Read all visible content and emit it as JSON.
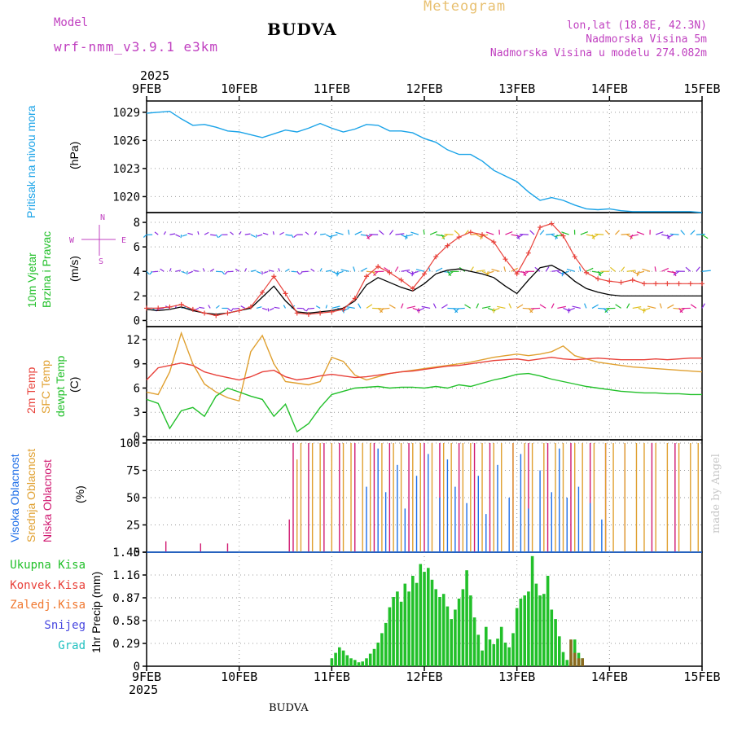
{
  "header": {
    "model_label": "Model",
    "model_name": "wrf-nmm_v3.9.1 e3km",
    "location": "BUDVA",
    "chart_kind": "Meteogram",
    "coords": "lon,lat (18.8E, 42.3N)",
    "elevation": "Nadmorska Visina 5m",
    "model_elevation": "Nadmorska Visina u modelu 274.082m",
    "footer_location": "BUDVA",
    "credit": "made by Angel",
    "year": "2025"
  },
  "colors": {
    "pressure": "#1aa3e8",
    "temp2m": "#e8413a",
    "sfc": "#e0a030",
    "dew": "#22c02a",
    "gust": "#e8413a",
    "wind": "#000000",
    "high": "#1e6ee8",
    "mid": "#e0a030",
    "low": "#d01870",
    "precip": "#22c02a",
    "conv": "#e8413a",
    "snow": "#4848e0",
    "grad": "#20c0c0",
    "title": "#c040c0",
    "meteo": "#e8c070"
  },
  "chart_data": [
    {
      "type": "line",
      "title": "Pritisak na nivou mora",
      "ylabel": "(hPa)",
      "yticks": [
        "1029",
        "1026",
        "1023",
        "1020"
      ],
      "ylim": [
        1018.3,
        1030.2
      ],
      "x_range_hours": [
        0,
        144
      ],
      "series": [
        {
          "name": "Pritisak",
          "x": [
            0,
            3,
            6,
            9,
            12,
            15,
            18,
            21,
            24,
            27,
            30,
            33,
            36,
            39,
            42,
            45,
            48,
            51,
            54,
            57,
            60,
            63,
            66,
            69,
            72,
            75,
            78,
            81,
            84,
            87,
            90,
            93,
            96,
            99,
            102,
            105,
            108,
            111,
            114,
            117,
            120,
            123,
            126,
            129,
            132,
            135,
            138,
            141,
            144
          ],
          "values": [
            1028.9,
            1029.0,
            1029.1,
            1028.3,
            1027.6,
            1027.7,
            1027.4,
            1027.0,
            1026.9,
            1026.6,
            1026.3,
            1026.7,
            1027.1,
            1026.9,
            1027.3,
            1027.8,
            1027.3,
            1026.9,
            1027.2,
            1027.7,
            1027.6,
            1027.0,
            1027.0,
            1026.8,
            1026.2,
            1025.8,
            1025.0,
            1024.5,
            1024.5,
            1023.8,
            1022.8,
            1022.2,
            1021.6,
            1020.5,
            1019.6,
            1019.9,
            1019.6,
            1019.1,
            1018.7,
            1018.6,
            1018.7,
            1018.5,
            1018.4,
            1018.4,
            1018.4,
            1018.4,
            1018.4,
            1018.4,
            1018.3
          ]
        }
      ]
    },
    {
      "type": "line",
      "title": "10m Vjetar Brzina i Pravac",
      "ylabel": "(m/s)",
      "direction_legend": {
        "n": "N",
        "w": "W",
        "e": "E",
        "s": "S"
      },
      "yticks": [
        "8",
        "6",
        "4",
        "2",
        "0"
      ],
      "ylim": [
        -0.5,
        8.8
      ],
      "x_range_hours": [
        0,
        144
      ],
      "series": [
        {
          "name": "Udari vjetra",
          "x": [
            0,
            3,
            6,
            9,
            12,
            15,
            18,
            21,
            24,
            27,
            30,
            33,
            36,
            39,
            42,
            45,
            48,
            51,
            54,
            57,
            60,
            63,
            66,
            69,
            72,
            75,
            78,
            81,
            84,
            87,
            90,
            93,
            96,
            99,
            102,
            105,
            108,
            111,
            114,
            117,
            120,
            123,
            126,
            129,
            132,
            135,
            138,
            141,
            144
          ],
          "values": [
            1.0,
            1.0,
            1.1,
            1.3,
            0.9,
            0.6,
            0.4,
            0.6,
            0.8,
            1.1,
            2.3,
            3.6,
            2.2,
            0.6,
            0.5,
            0.6,
            0.7,
            0.9,
            1.8,
            3.6,
            4.4,
            3.9,
            3.3,
            2.6,
            3.8,
            5.2,
            6.1,
            6.8,
            7.2,
            7.0,
            6.4,
            5.0,
            3.8,
            5.5,
            7.6,
            7.9,
            6.9,
            5.2,
            3.9,
            3.4,
            3.2,
            3.1,
            3.3,
            3.0,
            3.0,
            3.0,
            3.0,
            3.0,
            3.0
          ]
        },
        {
          "name": "Brzina",
          "x": [
            0,
            3,
            6,
            9,
            12,
            15,
            18,
            21,
            24,
            27,
            30,
            33,
            36,
            39,
            42,
            45,
            48,
            51,
            54,
            57,
            60,
            63,
            66,
            69,
            72,
            75,
            78,
            81,
            84,
            87,
            90,
            93,
            96,
            99,
            102,
            105,
            108,
            111,
            114,
            117,
            120,
            123,
            126,
            129,
            132,
            135,
            138,
            141,
            144
          ],
          "values": [
            0.9,
            0.8,
            0.9,
            1.1,
            0.8,
            0.6,
            0.5,
            0.6,
            0.8,
            1.0,
            1.9,
            2.8,
            1.6,
            0.7,
            0.6,
            0.7,
            0.8,
            1.0,
            1.6,
            2.9,
            3.5,
            3.1,
            2.7,
            2.4,
            3.0,
            3.8,
            4.1,
            4.2,
            4.0,
            3.8,
            3.5,
            2.8,
            2.2,
            3.3,
            4.3,
            4.5,
            4.0,
            3.2,
            2.6,
            2.3,
            2.1,
            2.0,
            2.0,
            2.0,
            2.0,
            2.0,
            2.0,
            2.0,
            2.0
          ]
        }
      ],
      "arrow_rows": [
        1,
        4,
        7
      ]
    },
    {
      "type": "line",
      "title": "2m Temp / SFC Temp / dewpt Temp",
      "labels": [
        "2m Temp",
        "SFC Temp",
        "dewpt Temp"
      ],
      "ylabel": "(C)",
      "yticks": [
        "12",
        "9",
        "6",
        "3",
        "0"
      ],
      "ylim": [
        -0.4,
        13.6
      ],
      "x_range_hours": [
        0,
        144
      ],
      "series": [
        {
          "name": "2m Temp",
          "x": [
            0,
            3,
            6,
            9,
            12,
            15,
            18,
            21,
            24,
            27,
            30,
            33,
            36,
            39,
            42,
            45,
            48,
            51,
            54,
            57,
            60,
            63,
            66,
            69,
            72,
            75,
            78,
            81,
            84,
            87,
            90,
            93,
            96,
            99,
            102,
            105,
            108,
            111,
            114,
            117,
            120,
            123,
            126,
            129,
            132,
            135,
            138,
            141,
            144
          ],
          "values": [
            7.0,
            8.5,
            8.8,
            9.1,
            8.8,
            8.0,
            7.6,
            7.3,
            7.0,
            7.4,
            8.0,
            8.2,
            7.4,
            7.0,
            7.2,
            7.5,
            7.7,
            7.5,
            7.3,
            7.4,
            7.6,
            7.8,
            8.0,
            8.1,
            8.3,
            8.5,
            8.7,
            8.8,
            9.0,
            9.2,
            9.4,
            9.5,
            9.6,
            9.4,
            9.6,
            9.8,
            9.6,
            9.5,
            9.6,
            9.7,
            9.6,
            9.5,
            9.5,
            9.5,
            9.6,
            9.5,
            9.6,
            9.7,
            9.7
          ]
        },
        {
          "name": "SFC Temp",
          "x": [
            0,
            3,
            6,
            9,
            12,
            15,
            18,
            21,
            24,
            27,
            30,
            33,
            36,
            39,
            42,
            45,
            48,
            51,
            54,
            57,
            60,
            63,
            66,
            69,
            72,
            75,
            78,
            81,
            84,
            87,
            90,
            93,
            96,
            99,
            102,
            105,
            108,
            111,
            114,
            117,
            120,
            123,
            126,
            129,
            132,
            135,
            138,
            141,
            144
          ],
          "values": [
            5.5,
            5.2,
            8.0,
            12.8,
            9.0,
            6.5,
            5.5,
            4.8,
            4.4,
            10.5,
            12.5,
            9.0,
            6.8,
            6.6,
            6.4,
            6.8,
            9.8,
            9.3,
            7.6,
            7.0,
            7.4,
            7.8,
            8.0,
            8.2,
            8.4,
            8.6,
            8.8,
            9.0,
            9.2,
            9.5,
            9.8,
            10.0,
            10.2,
            10.0,
            10.2,
            10.5,
            11.2,
            10.0,
            9.6,
            9.2,
            9.0,
            8.8,
            8.6,
            8.5,
            8.4,
            8.3,
            8.2,
            8.1,
            8.0
          ]
        },
        {
          "name": "dewpt Temp",
          "x": [
            0,
            3,
            6,
            9,
            12,
            15,
            18,
            21,
            24,
            27,
            30,
            33,
            36,
            39,
            42,
            45,
            48,
            51,
            54,
            57,
            60,
            63,
            66,
            69,
            72,
            75,
            78,
            81,
            84,
            87,
            90,
            93,
            96,
            99,
            102,
            105,
            108,
            111,
            114,
            117,
            120,
            123,
            126,
            129,
            132,
            135,
            138,
            141,
            144
          ],
          "values": [
            4.6,
            4.1,
            1.0,
            3.2,
            3.6,
            2.5,
            5.0,
            6.0,
            5.5,
            5.0,
            4.6,
            2.5,
            4.0,
            0.6,
            1.6,
            3.6,
            5.2,
            5.6,
            6.0,
            6.1,
            6.2,
            6.0,
            6.1,
            6.1,
            6.0,
            6.2,
            6.0,
            6.4,
            6.2,
            6.6,
            7.0,
            7.3,
            7.7,
            7.8,
            7.5,
            7.1,
            6.8,
            6.5,
            6.2,
            6.0,
            5.8,
            5.6,
            5.5,
            5.4,
            5.4,
            5.3,
            5.3,
            5.2,
            5.2
          ]
        }
      ]
    },
    {
      "type": "bar",
      "title": "Visoka / Srednja / Niska Oblacnost",
      "labels": [
        "Visoka Oblacnost",
        "Srednja Oblacnost",
        "Niska Oblacnost"
      ],
      "ylabel": "(%)",
      "yticks": [
        "100",
        "75",
        "50",
        "25",
        "0"
      ],
      "ylim": [
        0,
        103
      ],
      "x_range_hours": [
        0,
        144
      ],
      "series": [
        {
          "name": "Niska",
          "x": [
            5,
            14,
            21,
            37,
            38,
            42,
            46,
            50,
            54,
            59,
            63,
            68,
            72,
            76,
            81,
            85,
            89,
            95,
            99,
            104,
            110,
            115,
            119,
            124,
            131,
            137
          ],
          "values": [
            10,
            8,
            8,
            30,
            100,
            100,
            100,
            100,
            100,
            100,
            100,
            100,
            100,
            100,
            100,
            100,
            100,
            100,
            100,
            100,
            100,
            100,
            100,
            100,
            100,
            100
          ]
        },
        {
          "name": "Srednja",
          "x": [
            39,
            40,
            43,
            45,
            48,
            51,
            53,
            56,
            58,
            61,
            64,
            66,
            69,
            71,
            74,
            77,
            79,
            82,
            84,
            87,
            90,
            92,
            95,
            98,
            100,
            103,
            106,
            108,
            111,
            113,
            116,
            119,
            121,
            124,
            127,
            129,
            132,
            135,
            138,
            141,
            143
          ],
          "values": [
            85,
            100,
            100,
            100,
            100,
            100,
            100,
            100,
            100,
            100,
            100,
            100,
            100,
            100,
            100,
            100,
            100,
            100,
            100,
            100,
            100,
            100,
            100,
            100,
            100,
            100,
            100,
            100,
            100,
            100,
            100,
            100,
            100,
            100,
            100,
            100,
            100,
            100,
            100,
            100,
            100
          ]
        },
        {
          "name": "Visoka",
          "x": [
            57,
            60,
            62,
            65,
            67,
            70,
            73,
            76,
            78,
            80,
            83,
            86,
            88,
            91,
            94,
            97,
            99,
            102,
            105,
            107,
            109,
            112,
            115,
            118
          ],
          "values": [
            60,
            95,
            55,
            80,
            40,
            70,
            90,
            50,
            85,
            60,
            45,
            70,
            35,
            80,
            50,
            90,
            40,
            75,
            55,
            95,
            50,
            60,
            45,
            30
          ]
        }
      ]
    },
    {
      "type": "bar",
      "title": "1hr Precip",
      "legend": [
        "Ukupna Kisa",
        "Konvek.Kisa",
        "Zaledj.Kisa",
        "Snijeg",
        "Grad"
      ],
      "ylabel": "1hr Precip (mm)",
      "yticks": [
        "1.45",
        "1.16",
        "0.87",
        "0.58",
        "0.29",
        "0"
      ],
      "ylim": [
        0,
        1.45
      ],
      "x_range_hours": [
        0,
        144
      ],
      "series": [
        {
          "name": "Ukupna Kisa",
          "x": [
            48,
            49,
            50,
            51,
            52,
            53,
            54,
            55,
            56,
            57,
            58,
            59,
            60,
            61,
            62,
            63,
            64,
            65,
            66,
            67,
            68,
            69,
            70,
            71,
            72,
            73,
            74,
            75,
            76,
            77,
            78,
            79,
            80,
            81,
            82,
            83,
            84,
            85,
            86,
            87,
            88,
            89,
            90,
            91,
            92,
            93,
            94,
            95,
            96,
            97,
            98,
            99,
            100,
            101,
            102,
            103,
            104,
            105,
            106,
            107,
            108,
            109,
            110,
            111,
            112,
            113
          ],
          "values": [
            0.1,
            0.17,
            0.24,
            0.2,
            0.14,
            0.1,
            0.08,
            0.05,
            0.06,
            0.1,
            0.16,
            0.22,
            0.3,
            0.42,
            0.55,
            0.75,
            0.88,
            0.95,
            0.82,
            1.05,
            0.95,
            1.15,
            1.06,
            1.3,
            1.2,
            1.25,
            1.1,
            0.98,
            0.88,
            0.92,
            0.76,
            0.6,
            0.72,
            0.86,
            0.98,
            1.22,
            0.9,
            0.62,
            0.4,
            0.2,
            0.5,
            0.34,
            0.28,
            0.35,
            0.5,
            0.3,
            0.24,
            0.42,
            0.74,
            0.86,
            0.9,
            0.95,
            1.4,
            1.05,
            0.9,
            0.92,
            1.15,
            0.72,
            0.6,
            0.38,
            0.18,
            0.08,
            0.05,
            0.34,
            0.17,
            0.1
          ]
        },
        {
          "name": "Konvek.Kisa",
          "x": [
            110,
            111,
            112,
            113
          ],
          "values": [
            0.34,
            0.17,
            0.1,
            0.1
          ]
        }
      ]
    }
  ],
  "x_axis": {
    "labels": [
      "9FEB",
      "10FEB",
      "11FEB",
      "12FEB",
      "13FEB",
      "14FEB",
      "15FEB"
    ],
    "hours": [
      0,
      24,
      48,
      72,
      96,
      120,
      144
    ]
  }
}
